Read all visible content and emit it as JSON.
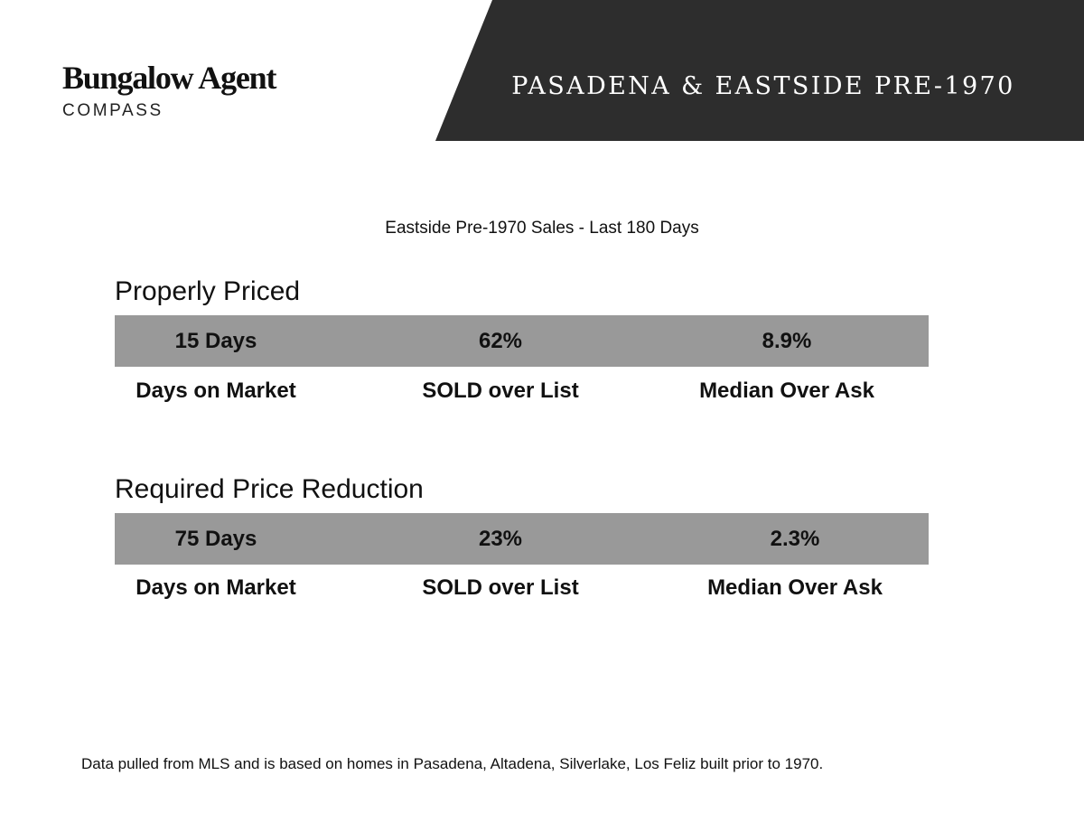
{
  "header": {
    "logo_name": "Bungalow Agent",
    "logo_brand": "COMPASS",
    "title": "PASADENA & EASTSIDE PRE-1970",
    "band_color": "#2d2d2d"
  },
  "subtitle": "Eastside Pre-1970 Sales - Last 180 Days",
  "sections": [
    {
      "title": "Properly Priced",
      "values": [
        "15 Days",
        "62%",
        "8.9%"
      ],
      "labels": [
        "Days on Market",
        "SOLD over List",
        "Median Over Ask"
      ]
    },
    {
      "title": "Required Price Reduction",
      "values": [
        "75 Days",
        "23%",
        "2.3%"
      ],
      "labels": [
        "Days on Market",
        "SOLD over List",
        "Median Over Ask"
      ]
    }
  ],
  "footnote": "Data pulled from MLS and is based on homes in Pasadena, Altadena, Silverlake, Los Feliz built prior to 1970.",
  "colors": {
    "value_band": "#999999",
    "text": "#111111"
  }
}
